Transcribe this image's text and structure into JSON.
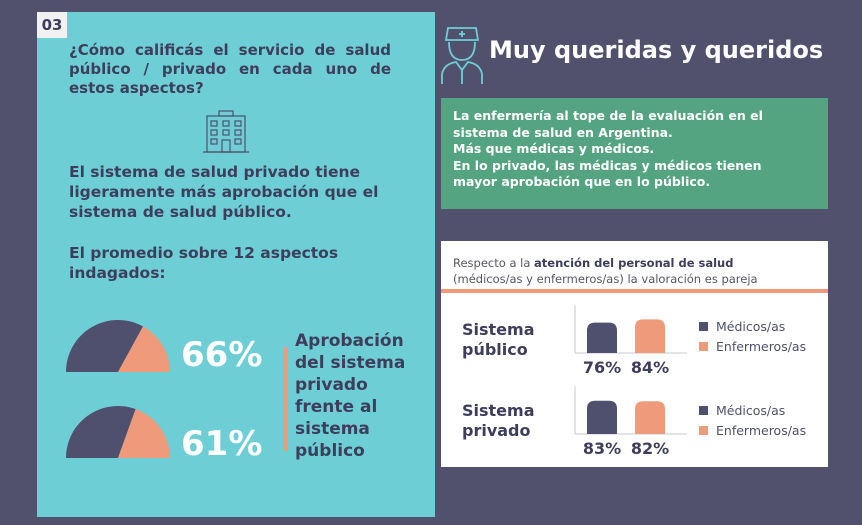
{
  "badge": "03",
  "question": "¿Cómo calificás el servicio de salud público / privado en cada uno de estos aspectos?",
  "finding": "El sistema de salud privado tiene ligeramente más aprobación que el sistema de salud público.",
  "average_label": "El promedio sobre 12 aspectos indagados:",
  "approval_text": [
    "Aprobación",
    "del sistema",
    "privado",
    "frente al",
    "sistema",
    "público"
  ],
  "title": "Muy queridas y queridos",
  "green_box": [
    "La enfermería al tope de la evaluación en el",
    "sistema de salud en Argentina.",
    "Más que médicas y médicos.",
    "En lo privado, las médicas y médicos tienen",
    "mayor aprobación que en lo público."
  ],
  "white_box": {
    "header_pre": "Respecto a la ",
    "header_bold": "atención del personal de salud",
    "header_post": "(médicos/as y enfermeros/as) la valoración es pareja"
  },
  "colors": {
    "dark": "#4f4f6e",
    "salmon": "#ef9a7a",
    "teal": "#6dcfd5",
    "green": "#55a481"
  },
  "icons": [
    "building-icon",
    "nurse-icon"
  ],
  "chart_data": [
    {
      "type": "pie",
      "slices": [
        {
          "label": "66%",
          "value": 66,
          "color": "#4f4f6e"
        },
        {
          "label": "",
          "value": 34,
          "color": "#ef9a7a"
        }
      ]
    },
    {
      "type": "pie",
      "slices": [
        {
          "label": "61%",
          "value": 61,
          "color": "#4f4f6e"
        },
        {
          "label": "",
          "value": 39,
          "color": "#ef9a7a"
        }
      ]
    },
    {
      "type": "bar",
      "title": "Sistema público",
      "categories": [
        "Médicos/as",
        "Enfermeros/as"
      ],
      "values": [
        76,
        84
      ],
      "labels": [
        "76%",
        "84%"
      ],
      "colors": [
        "#4f4f6e",
        "#ef9a7a"
      ],
      "legend": [
        "Médicos/as",
        "Enfermeros/as"
      ]
    },
    {
      "type": "bar",
      "title": "Sistema privado",
      "categories": [
        "Médicos/as",
        "Enfermeros/as"
      ],
      "values": [
        83,
        82
      ],
      "labels": [
        "83%",
        "82%"
      ],
      "colors": [
        "#4f4f6e",
        "#ef9a7a"
      ],
      "legend": [
        "Médicos/as",
        "Enfermeros/as"
      ]
    }
  ],
  "pie_values": [
    "66%",
    "61%"
  ],
  "row_labels": [
    [
      "Sistema",
      "público"
    ],
    [
      "Sistema",
      "privado"
    ]
  ]
}
